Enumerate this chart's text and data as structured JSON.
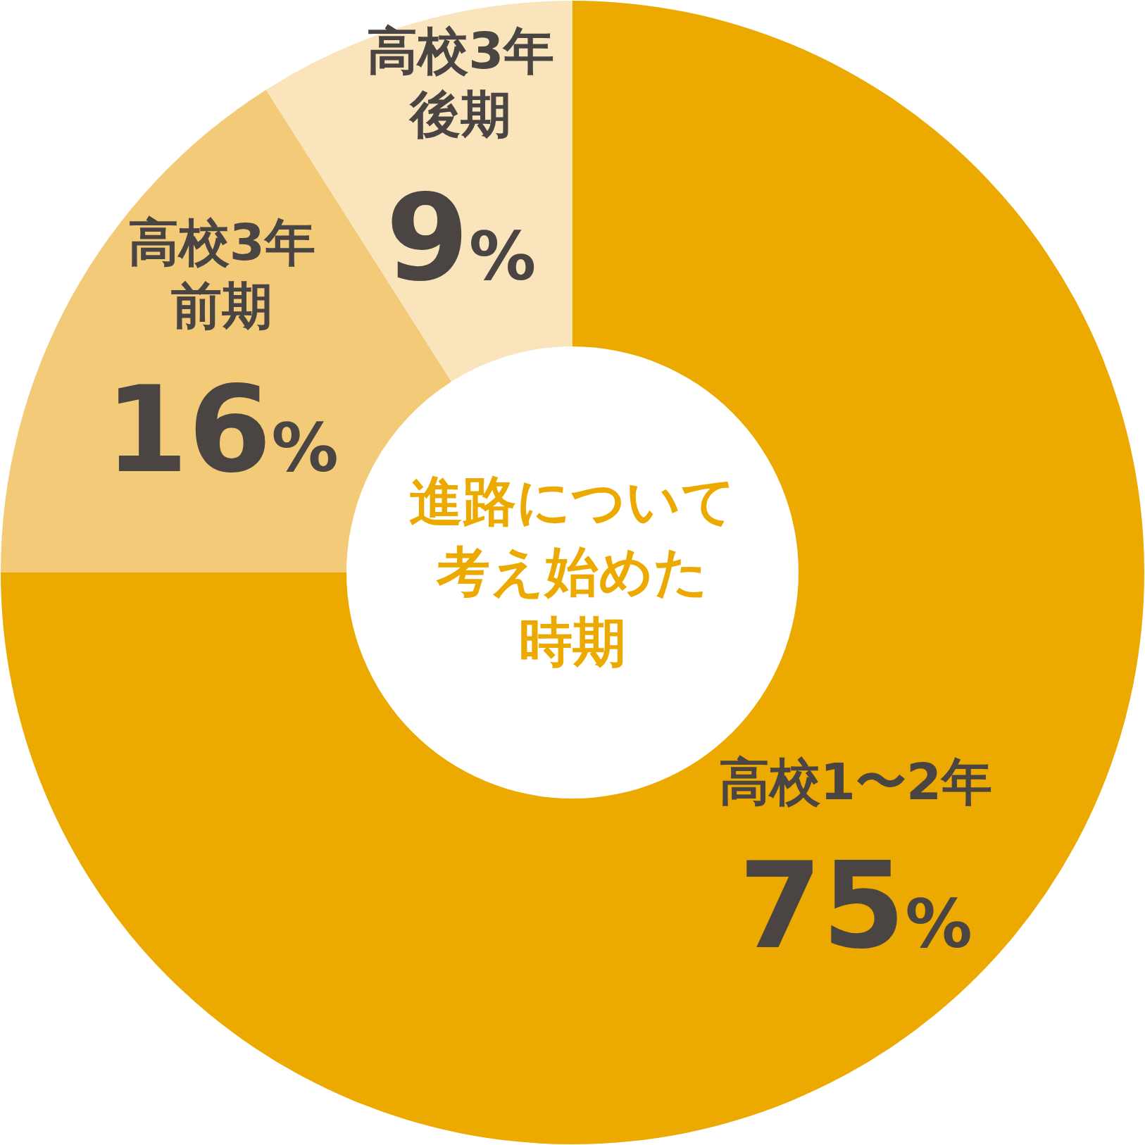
{
  "chart_data": {
    "type": "donut",
    "title": "進路について考え始めた時期",
    "categories": [
      "高校1〜2年",
      "高校3年前期",
      "高校3年後期"
    ],
    "values": [
      75,
      16,
      9
    ],
    "colors": [
      "#eca900",
      "#f3cb78",
      "#fae4bc"
    ],
    "value_labels": [
      "75%",
      "16%",
      "9%"
    ]
  }
}
